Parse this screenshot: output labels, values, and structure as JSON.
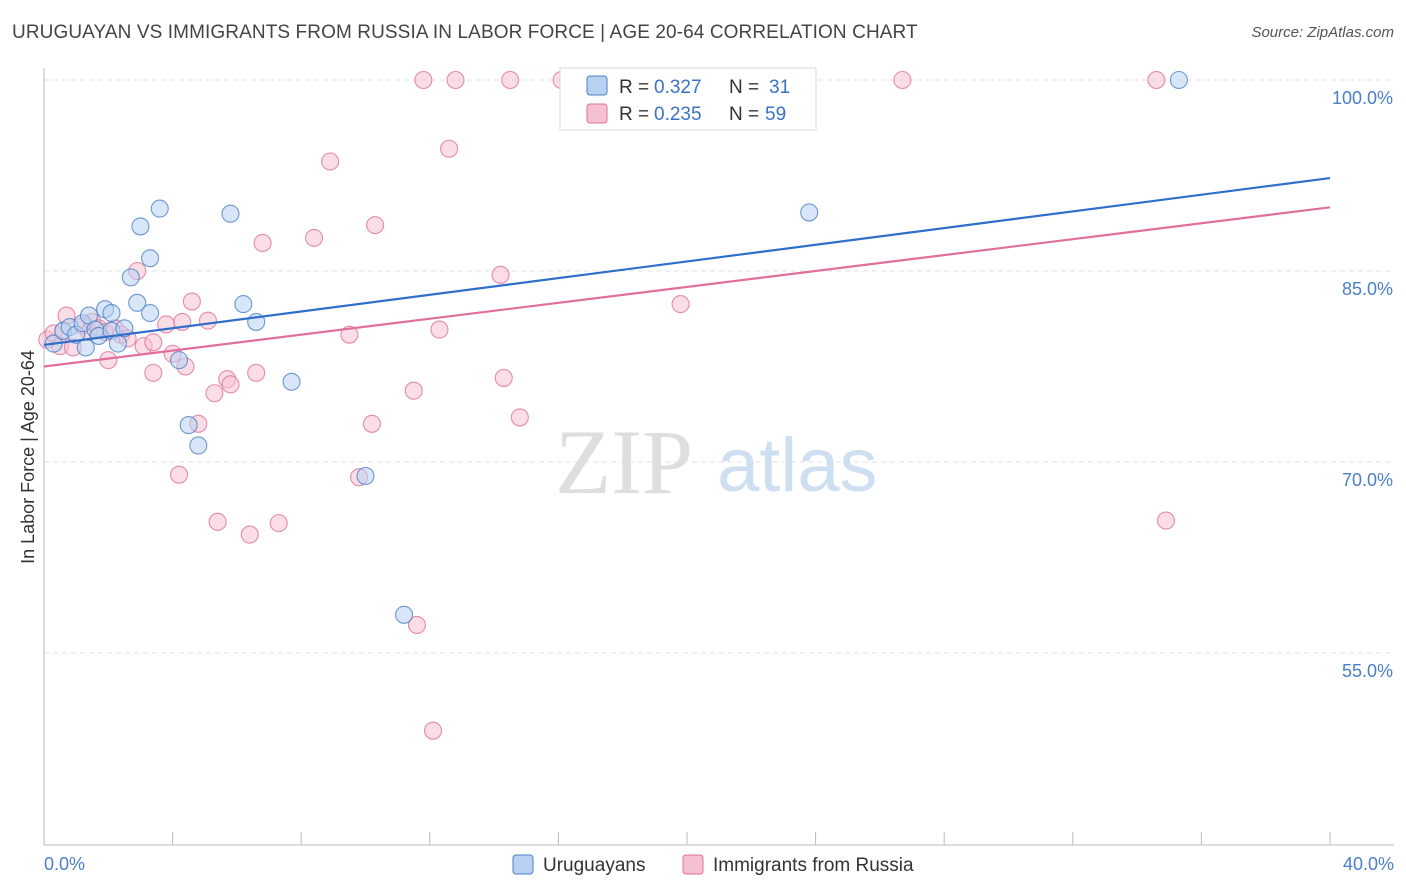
{
  "title": "URUGUAYAN VS IMMIGRANTS FROM RUSSIA IN LABOR FORCE | AGE 20-64 CORRELATION CHART",
  "source": "Source: ZipAtlas.com",
  "watermark": {
    "zip": "ZIP",
    "atlas": "atlas"
  },
  "colors": {
    "blue": "#4a7fc9",
    "blue_fill": "#b9d1f0",
    "pink": "#e07099",
    "pink_fill": "#f5c1d2",
    "blue_line": "#2f6fcc",
    "pink_line": "#e0709a"
  },
  "chart_data": {
    "type": "scatter",
    "ylabel": "In Labor Force | Age 20-64",
    "xlim": [
      0,
      40
    ],
    "ylim": [
      40,
      101
    ],
    "y_ticks": [
      {
        "value": 100,
        "label": "100.0%"
      },
      {
        "value": 85,
        "label": "85.0%"
      },
      {
        "value": 70,
        "label": "70.0%"
      },
      {
        "value": 55,
        "label": "55.0%"
      }
    ],
    "x_tick_labels": {
      "left": "0.0%",
      "right": "40.0%"
    },
    "legend": {
      "r_label": "R =",
      "n_label": "N =",
      "entries": [
        {
          "r": "0.327",
          "n": "31"
        },
        {
          "r": "0.235",
          "n": "59"
        }
      ]
    },
    "series": [
      {
        "name": "Uruguayans",
        "color": "#4a7fc9",
        "trend": {
          "x": [
            0,
            40
          ],
          "y": [
            79.2,
            92.3
          ]
        },
        "points": [
          {
            "x": 0.3,
            "y": 79.3
          },
          {
            "x": 0.6,
            "y": 80.3
          },
          {
            "x": 0.8,
            "y": 80.6
          },
          {
            "x": 1.0,
            "y": 80.0
          },
          {
            "x": 1.2,
            "y": 80.9
          },
          {
            "x": 1.4,
            "y": 81.5
          },
          {
            "x": 1.3,
            "y": 79.0
          },
          {
            "x": 1.6,
            "y": 80.4
          },
          {
            "x": 1.7,
            "y": 79.9
          },
          {
            "x": 1.9,
            "y": 82.0
          },
          {
            "x": 2.1,
            "y": 80.3
          },
          {
            "x": 2.1,
            "y": 81.7
          },
          {
            "x": 2.3,
            "y": 79.3
          },
          {
            "x": 2.5,
            "y": 80.5
          },
          {
            "x": 2.7,
            "y": 84.5
          },
          {
            "x": 2.9,
            "y": 82.5
          },
          {
            "x": 3.0,
            "y": 88.5
          },
          {
            "x": 3.3,
            "y": 81.7
          },
          {
            "x": 3.3,
            "y": 86.0
          },
          {
            "x": 3.6,
            "y": 89.9
          },
          {
            "x": 4.2,
            "y": 78.0
          },
          {
            "x": 4.5,
            "y": 72.9
          },
          {
            "x": 4.8,
            "y": 71.3
          },
          {
            "x": 5.8,
            "y": 89.5
          },
          {
            "x": 6.2,
            "y": 82.4
          },
          {
            "x": 6.6,
            "y": 81.0
          },
          {
            "x": 7.7,
            "y": 76.3
          },
          {
            "x": 10.0,
            "y": 68.9
          },
          {
            "x": 11.2,
            "y": 58.0
          },
          {
            "x": 23.8,
            "y": 89.6
          },
          {
            "x": 35.3,
            "y": 100.0
          }
        ]
      },
      {
        "name": "Immigrants from Russia",
        "color": "#e07099",
        "trend": {
          "x": [
            0,
            40
          ],
          "y": [
            77.5,
            90.0
          ]
        },
        "points": [
          {
            "x": 0.1,
            "y": 79.6
          },
          {
            "x": 0.3,
            "y": 80.1
          },
          {
            "x": 0.5,
            "y": 79.1
          },
          {
            "x": 0.6,
            "y": 80.3
          },
          {
            "x": 0.7,
            "y": 81.5
          },
          {
            "x": 0.9,
            "y": 79.0
          },
          {
            "x": 1.2,
            "y": 80.7
          },
          {
            "x": 1.4,
            "y": 80.2
          },
          {
            "x": 1.5,
            "y": 81.0
          },
          {
            "x": 1.7,
            "y": 80.5
          },
          {
            "x": 1.9,
            "y": 80.2
          },
          {
            "x": 2.0,
            "y": 78.0
          },
          {
            "x": 2.2,
            "y": 80.5
          },
          {
            "x": 2.4,
            "y": 80.0
          },
          {
            "x": 2.6,
            "y": 79.7
          },
          {
            "x": 2.9,
            "y": 85.0
          },
          {
            "x": 3.1,
            "y": 79.1
          },
          {
            "x": 3.4,
            "y": 77.0
          },
          {
            "x": 3.4,
            "y": 79.4
          },
          {
            "x": 3.8,
            "y": 80.8
          },
          {
            "x": 4.0,
            "y": 78.5
          },
          {
            "x": 4.2,
            "y": 69.0
          },
          {
            "x": 4.3,
            "y": 81.0
          },
          {
            "x": 4.4,
            "y": 77.5
          },
          {
            "x": 4.6,
            "y": 82.6
          },
          {
            "x": 4.8,
            "y": 73.0
          },
          {
            "x": 5.1,
            "y": 81.1
          },
          {
            "x": 5.3,
            "y": 75.4
          },
          {
            "x": 5.4,
            "y": 65.3
          },
          {
            "x": 5.7,
            "y": 76.5
          },
          {
            "x": 5.8,
            "y": 76.1
          },
          {
            "x": 6.4,
            "y": 64.3
          },
          {
            "x": 6.6,
            "y": 77.0
          },
          {
            "x": 6.8,
            "y": 87.2
          },
          {
            "x": 7.3,
            "y": 65.2
          },
          {
            "x": 8.4,
            "y": 87.6
          },
          {
            "x": 8.9,
            "y": 93.6
          },
          {
            "x": 9.5,
            "y": 80.0
          },
          {
            "x": 9.8,
            "y": 68.8
          },
          {
            "x": 10.2,
            "y": 73.0
          },
          {
            "x": 10.3,
            "y": 88.6
          },
          {
            "x": 11.5,
            "y": 75.6
          },
          {
            "x": 11.6,
            "y": 57.2
          },
          {
            "x": 11.8,
            "y": 100.0
          },
          {
            "x": 12.1,
            "y": 48.9
          },
          {
            "x": 12.3,
            "y": 80.4
          },
          {
            "x": 12.6,
            "y": 94.6
          },
          {
            "x": 12.8,
            "y": 100.0
          },
          {
            "x": 14.2,
            "y": 84.7
          },
          {
            "x": 14.3,
            "y": 76.6
          },
          {
            "x": 14.5,
            "y": 100.0
          },
          {
            "x": 14.8,
            "y": 73.5
          },
          {
            "x": 16.1,
            "y": 100.0
          },
          {
            "x": 19.3,
            "y": 96.8
          },
          {
            "x": 19.8,
            "y": 82.4
          },
          {
            "x": 21.7,
            "y": 100.0
          },
          {
            "x": 26.7,
            "y": 100.0
          },
          {
            "x": 34.6,
            "y": 100.0
          },
          {
            "x": 34.9,
            "y": 65.4
          }
        ]
      }
    ]
  }
}
